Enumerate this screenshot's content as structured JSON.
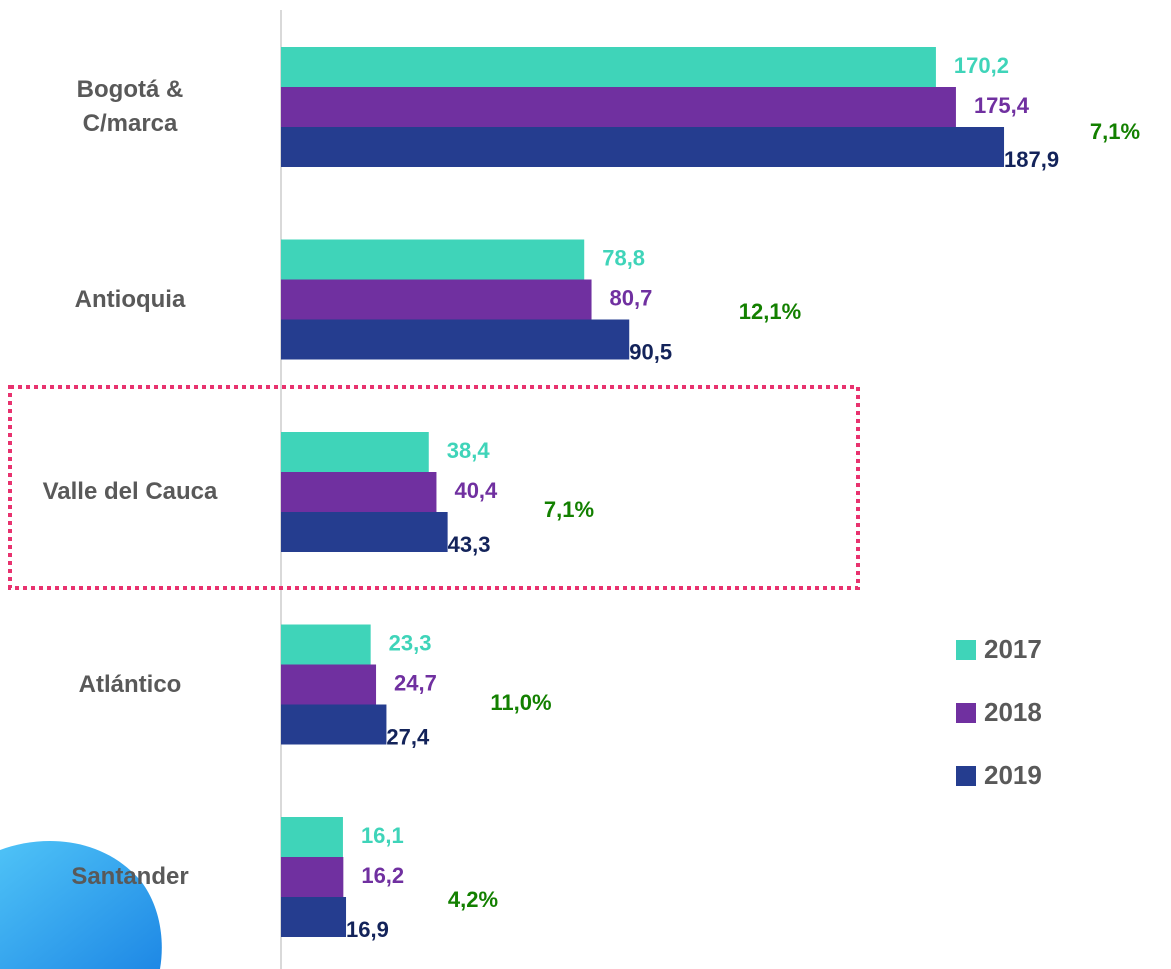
{
  "chart_data": {
    "type": "bar",
    "orientation": "horizontal",
    "categories": [
      "Bogotá &\nC/marca",
      "Antioquia",
      "Valle del Cauca",
      "Atlántico",
      "Santander"
    ],
    "series": [
      {
        "name": "2017",
        "color": "#3fd4b9",
        "label_color": "#3fd4b9",
        "values": [
          170.2,
          78.8,
          38.4,
          23.3,
          16.1
        ],
        "value_labels": [
          "170,2",
          "78,8",
          "38,4",
          "23,3",
          "16,1"
        ]
      },
      {
        "name": "2018",
        "color": "#7030a0",
        "label_color": "#7030a0",
        "values": [
          175.4,
          80.7,
          40.4,
          24.7,
          16.2
        ],
        "value_labels": [
          "175,4",
          "80,7",
          "40,4",
          "24,7",
          "16,2"
        ]
      },
      {
        "name": "2019",
        "color": "#253d8f",
        "label_color": "#13235a",
        "values": [
          187.9,
          90.5,
          43.3,
          27.4,
          16.9
        ],
        "value_labels": [
          "187,9",
          "90,5",
          "43,3",
          "27,4",
          "16,9"
        ]
      }
    ],
    "annotations": [
      "7,1%",
      "12,1%",
      "7,1%",
      "11,0%",
      "4,2%"
    ],
    "annotation_color": "#138000",
    "legend": "right"
  }
}
